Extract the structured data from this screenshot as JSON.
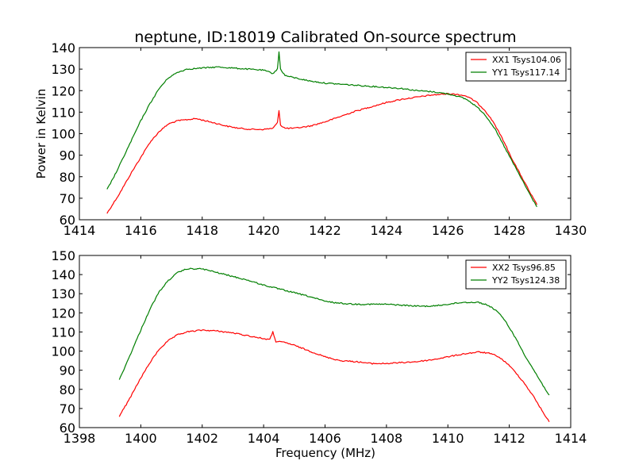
{
  "title": "neptune, ID:18019 Calibrated On-source spectrum",
  "xlabel": "Frequency (MHz)",
  "colors": {
    "red": "#ff0000",
    "green": "#007f00"
  },
  "chart_data": [
    {
      "type": "line",
      "title": "neptune, ID:18019 Calibrated On-source spectrum",
      "xlabel": "",
      "ylabel": "Power in Kelvin",
      "xlim": [
        1414,
        1430
      ],
      "ylim": [
        60,
        140
      ],
      "xticks": [
        "1414",
        "1416",
        "1418",
        "1420",
        "1422",
        "1424",
        "1426",
        "1428",
        "1430"
      ],
      "yticks": [
        "60",
        "70",
        "80",
        "90",
        "100",
        "110",
        "120",
        "130",
        "140"
      ],
      "legend_position": "top-right",
      "series": [
        {
          "name": "XX1 Tsys104.06",
          "color": "#ff0000",
          "x": [
            1414.9,
            1415.3,
            1415.7,
            1416.0,
            1416.3,
            1416.6,
            1416.9,
            1417.2,
            1417.5,
            1417.8,
            1418.1,
            1418.4,
            1418.8,
            1419.2,
            1419.6,
            1420.0,
            1420.3,
            1420.45,
            1420.5,
            1420.55,
            1420.7,
            1421.0,
            1421.5,
            1422.0,
            1422.5,
            1423.0,
            1423.5,
            1424.0,
            1424.5,
            1425.0,
            1425.5,
            1426.0,
            1426.3,
            1426.6,
            1426.9,
            1427.2,
            1427.5,
            1427.8,
            1428.1,
            1428.4,
            1428.7,
            1428.9
          ],
          "y": [
            63,
            72,
            82,
            89,
            96,
            101,
            104.5,
            106,
            106.5,
            107,
            106,
            105,
            103.5,
            102.5,
            102,
            102,
            102.5,
            105,
            111,
            104,
            102.5,
            102.5,
            103.5,
            105.5,
            108,
            110.5,
            112.5,
            114.5,
            116,
            117,
            118,
            118.5,
            118.3,
            117.5,
            115,
            111,
            105,
            97,
            88,
            80,
            72,
            67
          ]
        },
        {
          "name": "YY1 Tsys117.14",
          "color": "#007f00",
          "x": [
            1414.9,
            1415.2,
            1415.6,
            1416.0,
            1416.3,
            1416.6,
            1416.9,
            1417.2,
            1417.5,
            1418.0,
            1418.5,
            1419.0,
            1419.5,
            1420.0,
            1420.3,
            1420.45,
            1420.5,
            1420.55,
            1420.7,
            1421.0,
            1421.5,
            1422.0,
            1422.5,
            1423.0,
            1423.5,
            1424.0,
            1424.5,
            1425.0,
            1425.5,
            1426.0,
            1426.3,
            1426.6,
            1426.9,
            1427.2,
            1427.5,
            1427.8,
            1428.1,
            1428.4,
            1428.7,
            1428.9
          ],
          "y": [
            74,
            82,
            94,
            106,
            114,
            121,
            126,
            128.5,
            130,
            130.5,
            131,
            130.5,
            130,
            129.5,
            128,
            130,
            138,
            130,
            127,
            126,
            124.5,
            123.5,
            123,
            122.5,
            122,
            121.5,
            121,
            120,
            119.5,
            118.5,
            117.5,
            116,
            113,
            109,
            103,
            95,
            87,
            79,
            71,
            66
          ]
        }
      ]
    },
    {
      "type": "line",
      "title": "",
      "xlabel": "Frequency (MHz)",
      "ylabel": "",
      "xlim": [
        1398,
        1414
      ],
      "ylim": [
        60,
        150
      ],
      "xticks": [
        "1398",
        "1400",
        "1402",
        "1404",
        "1406",
        "1408",
        "1410",
        "1412",
        "1414"
      ],
      "yticks": [
        "60",
        "70",
        "80",
        "90",
        "100",
        "110",
        "120",
        "130",
        "140",
        "150"
      ],
      "legend_position": "top-right",
      "series": [
        {
          "name": "XX2 Tsys96.85",
          "color": "#ff0000",
          "x": [
            1399.3,
            1399.6,
            1400.0,
            1400.3,
            1400.6,
            1400.9,
            1401.2,
            1401.5,
            1402.0,
            1402.5,
            1403.0,
            1403.5,
            1404.0,
            1404.2,
            1404.3,
            1404.4,
            1404.7,
            1405.0,
            1405.5,
            1406.0,
            1406.5,
            1407.0,
            1407.5,
            1408.0,
            1408.5,
            1409.0,
            1409.5,
            1410.0,
            1410.5,
            1411.0,
            1411.3,
            1411.6,
            1411.9,
            1412.2,
            1412.5,
            1412.8,
            1413.1,
            1413.3
          ],
          "y": [
            66,
            74,
            86,
            94,
            101,
            105.5,
            108.5,
            110,
            111,
            110.5,
            109.5,
            108,
            106.5,
            106,
            110,
            105,
            104.5,
            103,
            100,
            97,
            95,
            94.5,
            93.5,
            93.5,
            94,
            94.5,
            95.5,
            97,
            98.5,
            99.5,
            99,
            97.5,
            94,
            89,
            83,
            76,
            68,
            63
          ]
        },
        {
          "name": "YY2 Tsys124.38",
          "color": "#007f00",
          "x": [
            1399.3,
            1399.6,
            1400.0,
            1400.3,
            1400.6,
            1400.9,
            1401.2,
            1401.5,
            1402.0,
            1402.5,
            1403.0,
            1403.5,
            1404.0,
            1404.5,
            1405.0,
            1405.5,
            1406.0,
            1406.5,
            1407.0,
            1407.5,
            1408.0,
            1408.5,
            1409.0,
            1409.5,
            1410.0,
            1410.5,
            1411.0,
            1411.3,
            1411.6,
            1411.9,
            1412.2,
            1412.5,
            1412.8,
            1413.1,
            1413.3
          ],
          "y": [
            85,
            96,
            111,
            122,
            131,
            137,
            141,
            143,
            143,
            141,
            139,
            137,
            134.5,
            132.5,
            130.5,
            128.5,
            126,
            125,
            124.5,
            124.5,
            124.5,
            124,
            123.5,
            123.5,
            124.5,
            125.5,
            125.5,
            124,
            121,
            115,
            107,
            98,
            90,
            82,
            77
          ]
        }
      ]
    }
  ]
}
